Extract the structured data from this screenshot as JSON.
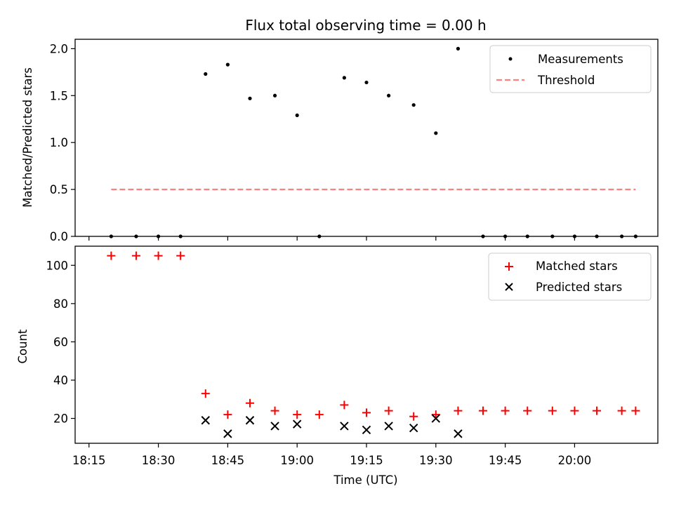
{
  "chart_data": [
    {
      "type": "scatter",
      "title": "Flux total observing time = 0.00 h",
      "ylabel": "Matched/Predicted stars",
      "xlabel": "",
      "ylim": [
        0,
        2.1
      ],
      "yticks": [
        {
          "value": 0.0,
          "label": "0.0"
        },
        {
          "value": 0.5,
          "label": "0.5"
        },
        {
          "value": 1.0,
          "label": "1.0"
        },
        {
          "value": 1.5,
          "label": "1.5"
        },
        {
          "value": 2.0,
          "label": "2.0"
        }
      ],
      "legend_position": "top-right",
      "series": [
        {
          "name": "Measurements",
          "marker": "dot",
          "color": "#000000",
          "x": [
            18.33,
            18.42,
            18.5,
            18.58,
            18.67,
            18.75,
            18.83,
            18.92,
            19.0,
            19.08,
            19.17,
            19.25,
            19.33,
            19.42,
            19.5,
            19.58,
            19.67,
            19.75,
            19.83,
            19.92,
            20.0,
            20.08,
            20.17,
            20.22
          ],
          "y": [
            0.0,
            0.0,
            0.0,
            0.0,
            1.73,
            1.83,
            1.47,
            1.5,
            1.29,
            0.0,
            1.69,
            1.64,
            1.5,
            1.4,
            1.1,
            2.0,
            0.0,
            0.0,
            0.0,
            0.0,
            0.0,
            0.0,
            0.0,
            0.0
          ]
        }
      ],
      "threshold": {
        "name": "Threshold",
        "value": 0.5,
        "x_from": 18.33,
        "x_to": 20.22,
        "color": "#ff7f7f",
        "style": "dashed"
      }
    },
    {
      "type": "scatter",
      "title": "",
      "ylabel": "Count",
      "xlabel": "Time (UTC)",
      "ylim": [
        7,
        110
      ],
      "xlim": [
        18.2,
        20.3
      ],
      "yticks": [
        {
          "value": 20,
          "label": "20"
        },
        {
          "value": 40,
          "label": "40"
        },
        {
          "value": 60,
          "label": "60"
        },
        {
          "value": 80,
          "label": "80"
        },
        {
          "value": 100,
          "label": "100"
        }
      ],
      "xticks": [
        {
          "value": 18.25,
          "label": "18:15"
        },
        {
          "value": 18.5,
          "label": "18:30"
        },
        {
          "value": 18.75,
          "label": "18:45"
        },
        {
          "value": 19.0,
          "label": "19:00"
        },
        {
          "value": 19.25,
          "label": "19:15"
        },
        {
          "value": 19.5,
          "label": "19:30"
        },
        {
          "value": 19.75,
          "label": "19:45"
        },
        {
          "value": 20.0,
          "label": "20:00"
        }
      ],
      "legend_position": "top-right",
      "series": [
        {
          "name": "Matched stars",
          "marker": "plus",
          "color": "#ff0000",
          "x": [
            18.33,
            18.42,
            18.5,
            18.58,
            18.67,
            18.75,
            18.83,
            18.92,
            19.0,
            19.08,
            19.17,
            19.25,
            19.33,
            19.42,
            19.5,
            19.58,
            19.67,
            19.75,
            19.83,
            19.92,
            20.0,
            20.08,
            20.17,
            20.22
          ],
          "y": [
            105,
            105,
            105,
            105,
            33,
            22,
            28,
            24,
            22,
            22,
            27,
            23,
            24,
            21,
            22,
            24,
            24,
            24,
            24,
            24,
            24,
            24,
            24,
            24
          ]
        },
        {
          "name": "Predicted stars",
          "marker": "cross",
          "color": "#000000",
          "x": [
            18.67,
            18.75,
            18.83,
            18.92,
            19.0,
            19.17,
            19.25,
            19.33,
            19.42,
            19.5,
            19.58
          ],
          "y": [
            19,
            12,
            19,
            16,
            17,
            16,
            14,
            16,
            15,
            20,
            12
          ]
        }
      ]
    }
  ]
}
